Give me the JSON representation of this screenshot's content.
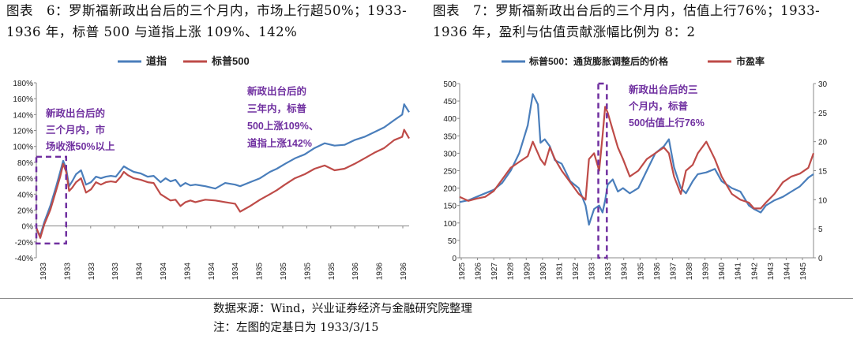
{
  "titles": {
    "left": "图表　6：罗斯福新政出台后的三个月内，市场上行超50%；1933-1936 年，标普 500 与道指上涨 109%、142%",
    "right": "图表　7：罗斯福新政出台后的三个月内，估值上行76%；1933-1936 年，盈利与估值贡献涨幅比例为 8：2"
  },
  "footer": {
    "source": "数据来源：Wind，兴业证券经济与金融研究院整理",
    "note": "注：左图的定基日为 1933/3/15"
  },
  "colors": {
    "blue": "#4a7ebb",
    "red": "#be4b48",
    "annotation": "#7030a0",
    "axis": "#888888"
  },
  "chart_data": [
    {
      "type": "line",
      "title": "",
      "legend": [
        "道指",
        "标普500"
      ],
      "legend_position": "top-center",
      "ylim": [
        -40,
        180
      ],
      "yticks": [
        -40,
        -20,
        0,
        20,
        40,
        60,
        80,
        100,
        120,
        140,
        160,
        180
      ],
      "ytick_labels": [
        "-40%",
        "-20%",
        "0%",
        "20%",
        "40%",
        "60%",
        "80%",
        "100%",
        "120%",
        "140%",
        "160%",
        "180%"
      ],
      "xticks": [
        "1933",
        "1933",
        "1933",
        "1933",
        "1934",
        "1934",
        "1934",
        "1934",
        "1934",
        "1935",
        "1935",
        "1935",
        "1935",
        "1936",
        "1936",
        "1936"
      ],
      "x_range": [
        1933.2,
        1936.95
      ],
      "series": [
        {
          "name": "道指",
          "x": [
            1933.2,
            1933.24,
            1933.28,
            1933.34,
            1933.4,
            1933.44,
            1933.47,
            1933.5,
            1933.53,
            1933.56,
            1933.6,
            1933.65,
            1933.7,
            1933.75,
            1933.8,
            1933.85,
            1933.9,
            1933.95,
            1934.0,
            1934.05,
            1934.08,
            1934.12,
            1934.18,
            1934.25,
            1934.32,
            1934.38,
            1934.45,
            1934.5,
            1934.55,
            1934.6,
            1934.65,
            1934.7,
            1934.75,
            1934.8,
            1934.9,
            1935.0,
            1935.1,
            1935.2,
            1935.25,
            1935.35,
            1935.45,
            1935.55,
            1935.62,
            1935.7,
            1935.8,
            1935.9,
            1936.0,
            1936.1,
            1936.2,
            1936.3,
            1936.4,
            1936.5,
            1936.6,
            1936.7,
            1936.8,
            1936.88,
            1936.9,
            1936.95
          ],
          "y": [
            -5,
            -12,
            5,
            25,
            50,
            68,
            82,
            72,
            50,
            56,
            65,
            70,
            52,
            55,
            62,
            60,
            62,
            63,
            62,
            70,
            75,
            72,
            68,
            66,
            62,
            63,
            55,
            60,
            56,
            58,
            50,
            54,
            51,
            52,
            50,
            47,
            54,
            52,
            50,
            55,
            60,
            68,
            72,
            78,
            85,
            90,
            98,
            104,
            101,
            102,
            108,
            112,
            118,
            124,
            133,
            140,
            153,
            143
          ]
        },
        {
          "name": "标普500",
          "x": [
            1933.2,
            1933.24,
            1933.28,
            1933.34,
            1933.4,
            1933.44,
            1933.47,
            1933.5,
            1933.53,
            1933.56,
            1933.6,
            1933.65,
            1933.7,
            1933.75,
            1933.8,
            1933.85,
            1933.9,
            1933.95,
            1934.0,
            1934.05,
            1934.08,
            1934.12,
            1934.18,
            1934.25,
            1934.32,
            1934.38,
            1934.45,
            1934.5,
            1934.55,
            1934.6,
            1934.65,
            1934.7,
            1934.75,
            1934.8,
            1934.9,
            1935.0,
            1935.1,
            1935.2,
            1935.25,
            1935.35,
            1935.45,
            1935.55,
            1935.62,
            1935.7,
            1935.8,
            1935.9,
            1936.0,
            1936.1,
            1936.2,
            1936.3,
            1936.4,
            1936.5,
            1936.6,
            1936.7,
            1936.8,
            1936.88,
            1936.9,
            1936.95
          ],
          "y": [
            -2,
            -15,
            2,
            20,
            45,
            62,
            78,
            68,
            44,
            48,
            55,
            60,
            42,
            46,
            55,
            52,
            55,
            56,
            55,
            62,
            68,
            64,
            60,
            58,
            55,
            54,
            40,
            36,
            32,
            33,
            25,
            30,
            32,
            30,
            33,
            32,
            30,
            28,
            18,
            25,
            33,
            40,
            45,
            52,
            60,
            65,
            72,
            76,
            70,
            72,
            78,
            85,
            92,
            98,
            108,
            112,
            121,
            110
          ]
        }
      ],
      "annotations": [
        "新政出台后的",
        "三个月内，市",
        "场收涨50%以上",
        "新政出台后的",
        "三年内，标普",
        "500上涨109%、",
        "道指上涨142%"
      ],
      "highlight_x_range": [
        1933.2,
        1933.5
      ],
      "highlight_y_range": [
        -22,
        87
      ]
    },
    {
      "type": "line",
      "title": "",
      "legend": [
        "标普500：通货膨胀调整后的价格",
        "市盈率"
      ],
      "legend_position": "top-center",
      "ylim_left": [
        0,
        500
      ],
      "ylim_right": [
        0,
        30
      ],
      "yticks_left": [
        0,
        50,
        100,
        150,
        200,
        250,
        300,
        350,
        400,
        450,
        500
      ],
      "yticks_right": [
        0,
        5,
        10,
        15,
        20,
        25,
        30
      ],
      "xticks": [
        "1925",
        "1926",
        "1927",
        "1928",
        "1929",
        "1930",
        "1931",
        "1932",
        "1933",
        "1933",
        "1934",
        "1935",
        "1936",
        "1937",
        "1938",
        "1939",
        "1940",
        "1941",
        "1942",
        "1943",
        "1944",
        "1945"
      ],
      "x_range": [
        1925,
        1945.8
      ],
      "series": [
        {
          "name": "标普500：通货膨胀调整后的价格",
          "axis": "left",
          "x": [
            1925,
            1925.5,
            1926,
            1926.5,
            1927,
            1927.5,
            1928,
            1928.5,
            1929.0,
            1929.3,
            1929.6,
            1929.75,
            1930.0,
            1930.3,
            1930.6,
            1931.0,
            1931.5,
            1932.0,
            1932.4,
            1932.6,
            1932.9,
            1933.2,
            1933.4,
            1933.55,
            1933.7,
            1934.0,
            1934.3,
            1934.6,
            1935.0,
            1935.5,
            1936.0,
            1936.5,
            1937.0,
            1937.3,
            1937.6,
            1938.0,
            1938.3,
            1938.7,
            1939.0,
            1939.5,
            1940.0,
            1940.4,
            1941.0,
            1941.5,
            1942.0,
            1942.3,
            1942.7,
            1943.0,
            1943.5,
            1944.0,
            1944.5,
            1945.0,
            1945.5,
            1945.8
          ],
          "y": [
            160,
            165,
            175,
            185,
            195,
            215,
            250,
            300,
            380,
            470,
            440,
            330,
            340,
            320,
            280,
            270,
            220,
            200,
            150,
            95,
            140,
            150,
            130,
            165,
            210,
            225,
            190,
            200,
            185,
            200,
            250,
            300,
            320,
            340,
            260,
            200,
            185,
            220,
            240,
            245,
            255,
            220,
            200,
            190,
            150,
            140,
            130,
            150,
            165,
            175,
            190,
            205,
            230,
            240
          ]
        },
        {
          "name": "市盈率",
          "axis": "right",
          "x": [
            1925,
            1925.5,
            1926,
            1926.5,
            1927,
            1927.5,
            1928,
            1928.5,
            1929.0,
            1929.3,
            1929.6,
            1929.75,
            1930.0,
            1930.3,
            1930.6,
            1931.0,
            1931.5,
            1932.0,
            1932.4,
            1932.6,
            1932.9,
            1933.2,
            1933.4,
            1933.55,
            1933.7,
            1934.0,
            1934.3,
            1934.6,
            1935.0,
            1935.5,
            1936.0,
            1936.5,
            1937.0,
            1937.3,
            1937.6,
            1938.0,
            1938.3,
            1938.7,
            1939.0,
            1939.5,
            1940.0,
            1940.4,
            1941.0,
            1941.5,
            1942.0,
            1942.3,
            1942.7,
            1943.0,
            1943.5,
            1944.0,
            1944.5,
            1945.0,
            1945.5,
            1945.8
          ],
          "y": [
            10.5,
            9.8,
            10.2,
            10.5,
            11.5,
            13.5,
            15.5,
            16.5,
            17.5,
            20,
            18,
            17,
            16,
            19,
            17,
            15,
            13,
            11,
            10,
            17,
            18,
            15,
            21,
            26,
            25,
            22,
            19,
            17,
            14,
            15,
            17,
            18,
            19,
            18,
            14,
            11,
            15,
            16,
            18,
            20,
            17,
            14,
            11,
            10,
            9.5,
            8.5,
            8.5,
            9.5,
            11,
            13,
            14,
            14.5,
            15.5,
            18
          ]
        }
      ],
      "annotations": [
        "新政出台后的三",
        "个月内，标普",
        "500估值上行76%"
      ],
      "highlight_x_range": [
        1933.15,
        1933.65
      ],
      "highlight_y_range": [
        0,
        500
      ]
    }
  ]
}
